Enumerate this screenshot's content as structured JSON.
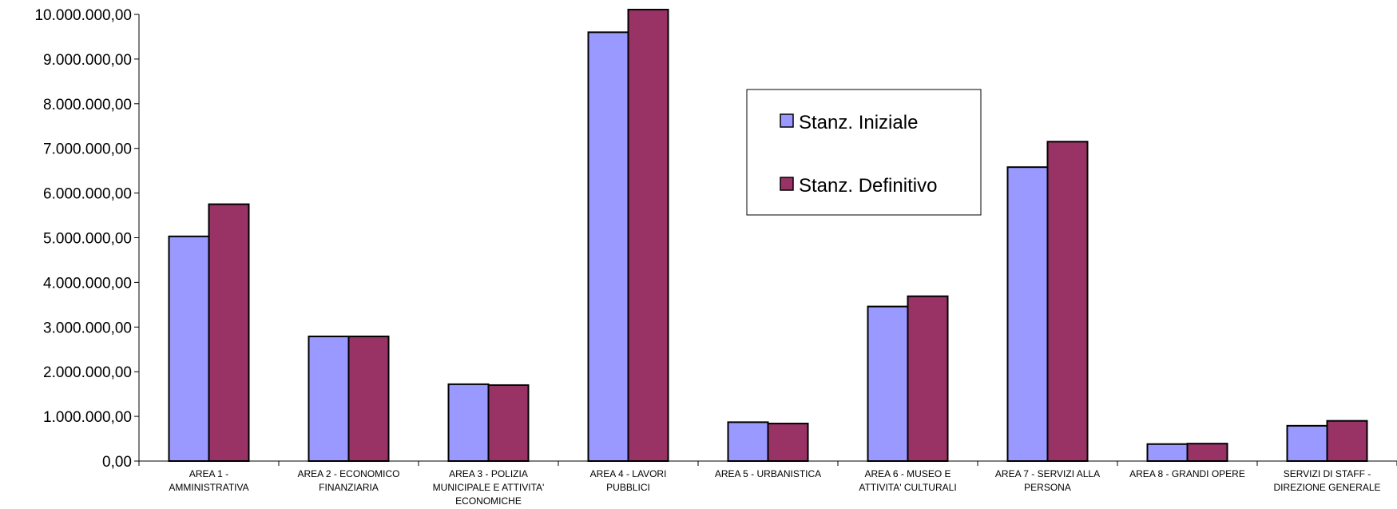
{
  "chart_data": {
    "type": "bar",
    "categories": [
      [
        "AREA 1 -",
        "AMMINISTRATIVA"
      ],
      [
        "AREA 2 - ECONOMICO",
        "FINANZIARIA"
      ],
      [
        "AREA 3 - POLIZIA",
        "MUNICIPALE E ATTIVITA'",
        "ECONOMICHE"
      ],
      [
        "AREA 4 - LAVORI",
        "PUBBLICI"
      ],
      [
        "AREA 5 - URBANISTICA"
      ],
      [
        "AREA 6 - MUSEO E",
        "ATTIVITA' CULTURALI"
      ],
      [
        "AREA 7 - SERVIZI ALLA",
        "PERSONA"
      ],
      [
        "AREA 8 - GRANDI OPERE"
      ],
      [
        "SERVIZI DI STAFF -",
        "DIREZIONE GENERALE"
      ]
    ],
    "series": [
      {
        "name": "Stanz. Iniziale",
        "color": "#9999ff",
        "values": [
          5030000,
          2790000,
          1720000,
          9600000,
          870000,
          3460000,
          6580000,
          380000,
          790000
        ]
      },
      {
        "name": "Stanz. Definitivo",
        "color": "#993366",
        "values": [
          5750000,
          2790000,
          1700000,
          10150000,
          840000,
          3690000,
          7150000,
          390000,
          900000
        ]
      }
    ],
    "y_ticks": [
      "0,00",
      "1.000.000,00",
      "2.000.000,00",
      "3.000.000,00",
      "4.000.000,00",
      "5.000.000,00",
      "6.000.000,00",
      "7.000.000,00",
      "8.000.000,00",
      "9.000.000,00",
      "10.000.000,00"
    ],
    "ylim": [
      0,
      10000000
    ],
    "grid": false,
    "legend_position": "top-center"
  }
}
